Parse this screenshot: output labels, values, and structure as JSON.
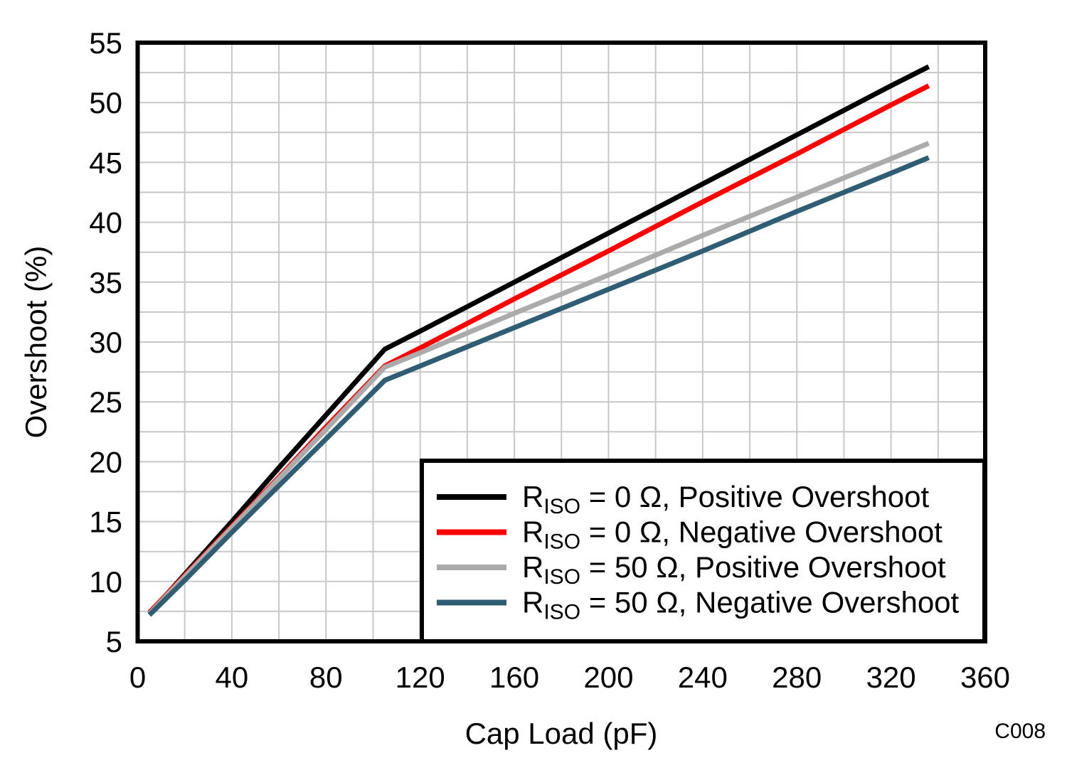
{
  "chart_data": {
    "type": "line",
    "title": "",
    "xlabel": "Cap Load (pF)",
    "ylabel": "Overshoot (%)",
    "xlim": [
      0,
      360
    ],
    "ylim": [
      5,
      55
    ],
    "x_major_ticks": [
      0,
      40,
      80,
      120,
      160,
      200,
      240,
      280,
      320,
      360
    ],
    "x_minor_grid_step": 20,
    "y_major_ticks": [
      5,
      10,
      15,
      20,
      25,
      30,
      35,
      40,
      45,
      50,
      55
    ],
    "y_minor_grid_step": 2.5,
    "grid": true,
    "grid_color": "#c8c8c8",
    "legend_position": "inside-bottom-right",
    "series": [
      {
        "id": "riso-0-positive",
        "name": "RISO = 0 Ω, Positive Overshoot",
        "label_r": "R",
        "label_sub": "ISO",
        "label_rest": " = 0 Ω, Positive Overshoot",
        "color": "#000000",
        "x": [
          5,
          20,
          40,
          60,
          80,
          105,
          120,
          160,
          200,
          240,
          280,
          320,
          336
        ],
        "y": [
          7.3,
          10.6,
          15.0,
          19.5,
          23.9,
          29.4,
          30.9,
          35.0,
          39.1,
          43.2,
          47.3,
          51.4,
          53.0
        ]
      },
      {
        "id": "riso-0-negative",
        "name": "RISO = 0 Ω, Negative Overshoot",
        "label_r": "R",
        "label_sub": "ISO",
        "label_rest": " = 0 Ω, Negative Overshoot",
        "color": "#ff0000",
        "x": [
          5,
          20,
          40,
          60,
          80,
          105,
          120,
          160,
          200,
          240,
          280,
          320,
          336
        ],
        "y": [
          7.4,
          10.5,
          14.6,
          18.7,
          22.9,
          28.0,
          29.5,
          33.6,
          37.6,
          41.7,
          45.7,
          49.8,
          51.4
        ]
      },
      {
        "id": "riso-50-positive",
        "name": "RISO = 50 Ω, Positive Overshoot",
        "label_r": "R",
        "label_sub": "ISO",
        "label_rest": " = 50 Ω, Positive Overshoot",
        "color": "#ababab",
        "x": [
          5,
          20,
          40,
          60,
          80,
          105,
          120,
          160,
          200,
          240,
          280,
          320,
          336
        ],
        "y": [
          7.3,
          10.4,
          14.5,
          18.6,
          22.7,
          27.9,
          29.1,
          32.4,
          35.6,
          38.9,
          42.1,
          45.3,
          46.6
        ]
      },
      {
        "id": "riso-50-negative",
        "name": "RISO = 50 Ω, Negative Overshoot",
        "label_r": "R",
        "label_sub": "ISO",
        "label_rest": " = 50 Ω, Negative Overshoot",
        "color": "#2f5e74",
        "x": [
          5,
          20,
          40,
          60,
          80,
          105,
          120,
          160,
          200,
          240,
          280,
          320,
          336
        ],
        "y": [
          7.2,
          10.1,
          14.1,
          18.0,
          21.9,
          26.8,
          28.0,
          31.2,
          34.4,
          37.6,
          40.9,
          44.1,
          45.4
        ]
      }
    ]
  },
  "annotations": {
    "figure_code": "C008"
  },
  "colors": {
    "plot_border": "#000000",
    "grid": "#c8c8c8",
    "figure_code_text": "#9b9b9b",
    "background": "#ffffff"
  }
}
